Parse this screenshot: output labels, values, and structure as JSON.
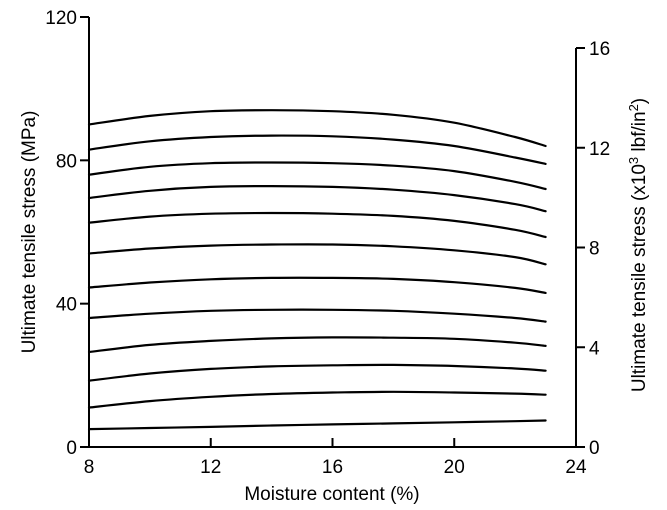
{
  "chart_data": {
    "type": "line",
    "title": "",
    "xlabel": "Moisture content (%)",
    "ylabel": "Ultimate tensile stress (MPa)",
    "y2label": "Ultimate tensile stress (x10³ lbf/in²)",
    "xlim": [
      8,
      24
    ],
    "ylim": [
      0,
      120
    ],
    "y2lim": [
      0,
      16
    ],
    "xticks": [
      8,
      12,
      16,
      20,
      24
    ],
    "yticks": [
      0,
      40,
      80,
      120
    ],
    "y2ticks": [
      0,
      4,
      8,
      12,
      16
    ],
    "grid": false,
    "legend": "none",
    "x": [
      8,
      10,
      12,
      14,
      16,
      18,
      20,
      22,
      23
    ],
    "series": [
      {
        "values": [
          5,
          5.3,
          5.6,
          6,
          6.3,
          6.6,
          6.9,
          7.2,
          7.4
        ]
      },
      {
        "values": [
          11,
          12.8,
          14,
          14.8,
          15.2,
          15.4,
          15.2,
          14.9,
          14.6
        ]
      },
      {
        "values": [
          18.5,
          20.5,
          21.8,
          22.5,
          22.8,
          22.9,
          22.6,
          21.9,
          21.3
        ]
      },
      {
        "values": [
          26.5,
          28.5,
          29.6,
          30.3,
          30.6,
          30.5,
          30.2,
          29.1,
          28.2
        ]
      },
      {
        "values": [
          36,
          37.2,
          38,
          38.3,
          38.3,
          38,
          37.2,
          36,
          35
        ]
      },
      {
        "values": [
          44.5,
          45.9,
          46.8,
          47.2,
          47.2,
          46.9,
          46,
          44.4,
          43
        ]
      },
      {
        "values": [
          54,
          55.4,
          56.2,
          56.5,
          56.5,
          56,
          54.9,
          53,
          51
        ]
      },
      {
        "values": [
          62.6,
          64.3,
          65.1,
          65.3,
          65.1,
          64.5,
          63.1,
          60.6,
          58.6
        ]
      },
      {
        "values": [
          69.5,
          71.5,
          72.6,
          72.8,
          72.6,
          71.8,
          70.3,
          67.8,
          65.8
        ]
      },
      {
        "values": [
          76,
          78.2,
          79.2,
          79.4,
          79.2,
          78.5,
          77,
          74,
          72
        ]
      },
      {
        "values": [
          83,
          85.3,
          86.5,
          86.9,
          86.7,
          85.8,
          84,
          80.8,
          79
        ]
      },
      {
        "values": [
          90,
          92.4,
          93.7,
          94,
          93.7,
          92.7,
          90.5,
          86.5,
          84
        ]
      }
    ]
  }
}
